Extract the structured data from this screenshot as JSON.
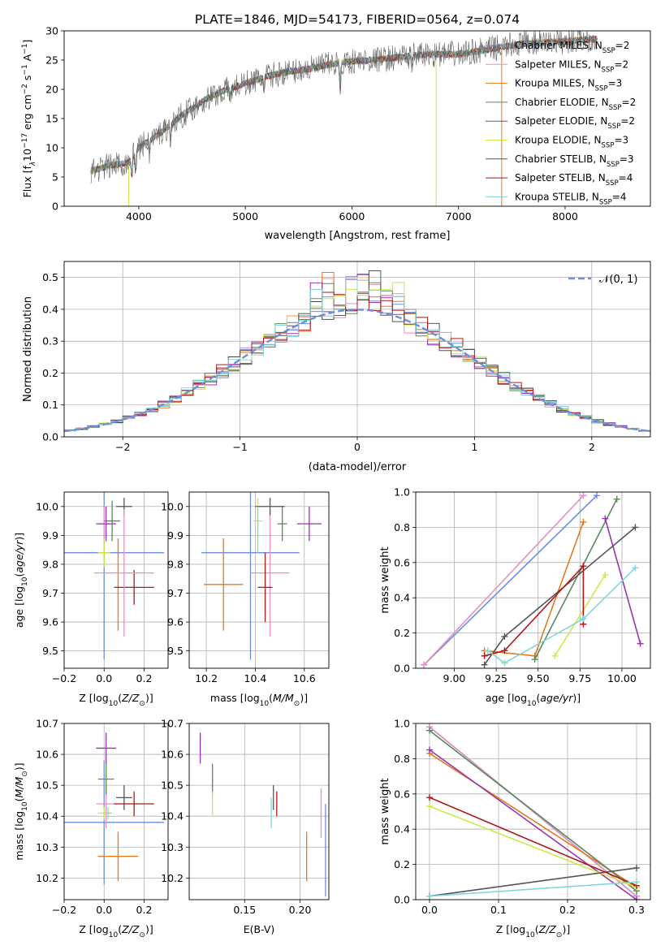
{
  "figure": {
    "title": "PLATE=1846, MJD=54173, FIBERID=0564, z=0.074"
  },
  "colors": {
    "Chabrier MILES": "#6a8fe0",
    "Salpeter MILES": "#e58fc4",
    "Kroupa MILES": "#e07b1f",
    "Chabrier ELODIE": "#5a8a5a",
    "Salpeter ELODIE": "#9b34b0",
    "Kroupa ELODIE": "#cfe84a",
    "Chabrier STELIB": "#555555",
    "Salpeter STELIB": "#b01818",
    "Kroupa STELIB": "#80d8d8",
    "normal": "#6a8fe0",
    "grid": "#b0b0b0"
  },
  "chart_data": [
    {
      "id": "spectrum",
      "type": "line",
      "title": "PLATE=1846, MJD=54173, FIBERID=0564, z=0.074",
      "xlabel": "wavelength [Angstrom, rest frame]",
      "ylabel_parts": [
        "Flux [f",
        "λ",
        "10",
        "−17",
        " erg cm",
        "−2",
        " s",
        "−1",
        " A",
        "−1",
        "]"
      ],
      "xlim": [
        3300,
        8800
      ],
      "ylim": [
        0,
        30
      ],
      "xticks": [
        4000,
        5000,
        6000,
        7000,
        8000
      ],
      "yticks": [
        0,
        5,
        10,
        15,
        20,
        25,
        30
      ],
      "grid": false,
      "legend_position": "right",
      "continuum": {
        "x": [
          3550,
          3700,
          3900,
          4000,
          4200,
          4400,
          4600,
          4800,
          5000,
          5200,
          5400,
          5600,
          5800,
          6000,
          6200,
          6400,
          6600,
          6800,
          7000,
          7200,
          7400,
          7600,
          7800,
          8000,
          8200,
          8300
        ],
        "y": [
          6.0,
          6.8,
          7.5,
          10.0,
          12.5,
          15.5,
          18.0,
          19.8,
          21.0,
          22.2,
          23.0,
          23.5,
          24.3,
          24.8,
          25.0,
          25.4,
          25.8,
          26.0,
          26.0,
          26.6,
          27.2,
          27.8,
          28.0,
          28.2,
          28.5,
          28.6
        ]
      },
      "series": [
        {
          "name": "Chabrier MILES",
          "label_main": "Chabrier MILES, N",
          "label_sub": "SSP",
          "label_tail": "=2"
        },
        {
          "name": "Salpeter MILES",
          "label_main": "Salpeter MILES, N",
          "label_sub": "SSP",
          "label_tail": "=2"
        },
        {
          "name": "Kroupa MILES",
          "label_main": "Kroupa MILES, N",
          "label_sub": "SSP",
          "label_tail": "=3"
        },
        {
          "name": "Chabrier ELODIE",
          "label_main": "Chabrier ELODIE, N",
          "label_sub": "SSP",
          "label_tail": "=2"
        },
        {
          "name": "Salpeter ELODIE",
          "label_main": "Salpeter ELODIE, N",
          "label_sub": "SSP",
          "label_tail": "=2"
        },
        {
          "name": "Kroupa ELODIE",
          "label_main": "Kroupa ELODIE, N",
          "label_sub": "SSP",
          "label_tail": "=3"
        },
        {
          "name": "Chabrier STELIB",
          "label_main": "Chabrier STELIB, N",
          "label_sub": "SSP",
          "label_tail": "=3"
        },
        {
          "name": "Salpeter STELIB",
          "label_main": "Salpeter STELIB, N",
          "label_sub": "SSP",
          "label_tail": "=4"
        },
        {
          "name": "Kroupa STELIB",
          "label_main": "Kroupa STELIB, N",
          "label_sub": "SSP",
          "label_tail": "=4"
        }
      ]
    },
    {
      "id": "residuals",
      "type": "histogram",
      "xlabel": "(data-model)/error",
      "ylabel": "Normed distribution",
      "xlim": [
        -2.5,
        2.5
      ],
      "ylim": [
        0,
        0.55
      ],
      "xticks": [
        -2,
        -1,
        0,
        1,
        2
      ],
      "yticks": [
        0.0,
        0.1,
        0.2,
        0.3,
        0.4,
        0.5
      ],
      "grid": true,
      "legend_position": "top-right",
      "normal_label": "𝒩(0, 1)",
      "bin_width": 0.1,
      "bins_start": -2.5
    },
    {
      "id": "age-vs-Z",
      "type": "errorbar",
      "xlabel": "Z [log10(Z/Z⊙)]",
      "ylabel": "age [log10(age/yr)]",
      "xlim": [
        -0.2,
        0.32
      ],
      "ylim": [
        9.44,
        10.05
      ],
      "xticks": [
        -0.2,
        0.0,
        0.2
      ],
      "yticks": [
        9.5,
        9.6,
        9.7,
        9.8,
        9.9,
        10.0
      ],
      "grid": true,
      "points": [
        {
          "series": "Chabrier MILES",
          "x": 0.0,
          "xerr": 0.3,
          "y": 9.84,
          "yerr": 0.37
        },
        {
          "series": "Salpeter MILES",
          "x": 0.0,
          "xerr": 0.03,
          "y": 9.94,
          "yerr": 0.06
        },
        {
          "series": "Kroupa MILES",
          "x": 0.07,
          "xerr": 0.0,
          "y": 9.73,
          "yerr": 0.16
        },
        {
          "series": "Chabrier ELODIE",
          "x": 0.04,
          "xerr": 0.04,
          "y": 9.95,
          "yerr": 0.07
        },
        {
          "series": "Salpeter ELODIE",
          "x": 0.01,
          "xerr": 0.05,
          "y": 9.94,
          "yerr": 0.06
        },
        {
          "series": "Kroupa ELODIE",
          "x": 0.0,
          "xerr": 0.03,
          "y": 9.84,
          "yerr": 0.05
        },
        {
          "series": "Chabrier STELIB",
          "x": 0.1,
          "xerr": 0.04,
          "y": 10.0,
          "yerr": 0.03
        },
        {
          "series": "Salpeter STELIB",
          "x": 0.15,
          "xerr": 0.1,
          "y": 9.72,
          "yerr": 0.06
        },
        {
          "series": "Salpeter MILES",
          "x": 0.1,
          "xerr": 0.15,
          "y": 9.77,
          "yerr": 0.22
        }
      ]
    },
    {
      "id": "age-vs-mass",
      "type": "errorbar",
      "xlabel": "mass [log10(M/M⊙)]",
      "ylabel": "",
      "xlim": [
        10.13,
        10.7
      ],
      "ylim": [
        9.44,
        10.05
      ],
      "xticks": [
        10.2,
        10.4,
        10.6
      ],
      "yticks": [
        9.5,
        9.6,
        9.7,
        9.8,
        9.9,
        10.0
      ],
      "grid": true,
      "points": [
        {
          "series": "Chabrier MILES",
          "x": 10.38,
          "xerr": 0.2,
          "y": 9.84,
          "yerr": 0.37
        },
        {
          "series": "Kroupa MILES",
          "x": 10.27,
          "xerr": 0.08,
          "y": 9.73,
          "yerr": 0.16
        },
        {
          "series": "Salpeter MILES",
          "x": 10.46,
          "xerr": 0.08,
          "y": 9.77,
          "yerr": 0.22
        },
        {
          "series": "Chabrier ELODIE",
          "x": 10.51,
          "xerr": 0.02,
          "y": 9.94,
          "yerr": 0.06
        },
        {
          "series": "Salpeter ELODIE",
          "x": 10.62,
          "xerr": 0.05,
          "y": 9.94,
          "yerr": 0.06
        },
        {
          "series": "Kroupa ELODIE",
          "x": 10.41,
          "xerr": 0.02,
          "y": 9.95,
          "yerr": 0.08
        },
        {
          "series": "Chabrier STELIB",
          "x": 10.46,
          "xerr": 0.06,
          "y": 10.0,
          "yerr": 0.03
        },
        {
          "series": "Salpeter STELIB",
          "x": 10.44,
          "xerr": 0.03,
          "y": 9.72,
          "yerr": 0.12
        },
        {
          "series": "Kroupa STELIB",
          "x": 10.41,
          "xerr": 0.0,
          "y": 9.92,
          "yerr": 0.08
        }
      ]
    },
    {
      "id": "weight-vs-age",
      "type": "line",
      "xlabel": "age [log10(age/yr)]",
      "ylabel": "mass weight",
      "xlim": [
        8.77,
        10.17
      ],
      "ylim": [
        0,
        1
      ],
      "xticks": [
        9.0,
        9.25,
        9.5,
        9.75,
        10.0
      ],
      "yticks": [
        0.0,
        0.2,
        0.4,
        0.6,
        0.8,
        1.0
      ],
      "grid": true,
      "series": [
        {
          "name": "Chabrier MILES",
          "x": [
            8.82,
            9.85
          ],
          "y": [
            0.02,
            0.98
          ]
        },
        {
          "name": "Salpeter MILES",
          "x": [
            8.82,
            9.77
          ],
          "y": [
            0.02,
            0.98
          ]
        },
        {
          "name": "Kroupa MILES",
          "x": [
            9.18,
            9.48,
            9.77
          ],
          "y": [
            0.1,
            0.07,
            0.83
          ]
        },
        {
          "name": "Chabrier ELODIE",
          "x": [
            9.48,
            9.97
          ],
          "y": [
            0.05,
            0.96
          ]
        },
        {
          "name": "Salpeter ELODIE",
          "x": [
            9.9,
            10.11
          ],
          "y": [
            0.85,
            0.14
          ]
        },
        {
          "name": "Kroupa ELODIE",
          "x": [
            9.6,
            9.9
          ],
          "y": [
            0.07,
            0.53
          ]
        },
        {
          "name": "Chabrier STELIB",
          "x": [
            9.18,
            9.3,
            10.08
          ],
          "y": [
            0.02,
            0.18,
            0.8
          ]
        },
        {
          "name": "Salpeter STELIB",
          "x": [
            9.18,
            9.3,
            9.77,
            9.77
          ],
          "y": [
            0.07,
            0.1,
            0.58,
            0.25
          ]
        },
        {
          "name": "Kroupa STELIB",
          "x": [
            9.2,
            9.3,
            9.77,
            10.08
          ],
          "y": [
            0.1,
            0.03,
            0.28,
            0.57
          ]
        }
      ]
    },
    {
      "id": "mass-vs-Z",
      "type": "errorbar",
      "xlabel": "Z [log10(Z/Z⊙)]",
      "ylabel": "mass [log10(M/M⊙)]",
      "xlim": [
        -0.2,
        0.32
      ],
      "ylim": [
        10.13,
        10.7
      ],
      "xticks": [
        -0.2,
        0.0,
        0.2
      ],
      "yticks": [
        10.2,
        10.3,
        10.4,
        10.5,
        10.6,
        10.7
      ],
      "grid": true,
      "points": [
        {
          "series": "Chabrier MILES",
          "x": 0.0,
          "xerr": 0.3,
          "y": 10.38,
          "yerr": 0.2
        },
        {
          "series": "Kroupa MILES",
          "x": 0.07,
          "xerr": 0.1,
          "y": 10.27,
          "yerr": 0.08
        },
        {
          "series": "Salpeter MILES",
          "x": 0.01,
          "xerr": 0.05,
          "y": 10.44,
          "yerr": 0.08
        },
        {
          "series": "Chabrier ELODIE",
          "x": 0.01,
          "xerr": 0.04,
          "y": 10.52,
          "yerr": 0.05
        },
        {
          "series": "Salpeter ELODIE",
          "x": 0.01,
          "xerr": 0.05,
          "y": 10.62,
          "yerr": 0.05
        },
        {
          "series": "Kroupa ELODIE",
          "x": 0.0,
          "xerr": 0.03,
          "y": 10.41,
          "yerr": 0.02
        },
        {
          "series": "Chabrier STELIB",
          "x": 0.1,
          "xerr": 0.04,
          "y": 10.46,
          "yerr": 0.04
        },
        {
          "series": "Salpeter STELIB",
          "x": 0.15,
          "xerr": 0.1,
          "y": 10.44,
          "yerr": 0.04
        },
        {
          "series": "Kroupa STELIB",
          "x": 0.02,
          "xerr": 0.02,
          "y": 10.41,
          "yerr": 0.02
        }
      ]
    },
    {
      "id": "mass-vs-ebv",
      "type": "errorbar",
      "xlabel": "E(B-V)",
      "ylabel": "",
      "xlim": [
        0.1,
        0.226
      ],
      "ylim": [
        10.13,
        10.7
      ],
      "xticks": [
        0.15,
        0.2
      ],
      "yticks": [
        10.2,
        10.3,
        10.4,
        10.5,
        10.6,
        10.7
      ],
      "grid": true,
      "points": [
        {
          "series": "Salpeter ELODIE",
          "x": 0.11,
          "y": 10.62,
          "yerr": 0.05
        },
        {
          "series": "Chabrier ELODIE",
          "x": 0.121,
          "y": 10.52,
          "yerr": 0.05
        },
        {
          "series": "Kroupa ELODIE",
          "x": 0.121,
          "y": 10.44,
          "yerr": 0.04
        },
        {
          "series": "Kroupa STELIB",
          "x": 0.174,
          "y": 10.41,
          "yerr": 0.05
        },
        {
          "series": "Chabrier STELIB",
          "x": 0.176,
          "y": 10.46,
          "yerr": 0.04
        },
        {
          "series": "Salpeter STELIB",
          "x": 0.179,
          "y": 10.44,
          "yerr": 0.04
        },
        {
          "series": "Kroupa MILES",
          "x": 0.206,
          "y": 10.27,
          "yerr": 0.08
        },
        {
          "series": "Salpeter MILES",
          "x": 0.219,
          "y": 10.41,
          "yerr": 0.08
        },
        {
          "series": "Chabrier MILES",
          "x": 0.223,
          "y": 10.29,
          "yerr": 0.15
        }
      ]
    },
    {
      "id": "weight-vs-Z",
      "type": "line",
      "xlabel": "Z [log10(Z/Z⊙)]",
      "ylabel": "mass weight",
      "xlim": [
        -0.02,
        0.32
      ],
      "ylim": [
        0,
        1
      ],
      "xticks": [
        0.0,
        0.1,
        0.2,
        0.3
      ],
      "yticks": [
        0.0,
        0.2,
        0.4,
        0.6,
        0.8,
        1.0
      ],
      "grid": true,
      "series": [
        {
          "name": "Chabrier MILES",
          "x": [
            0.0,
            0.3
          ],
          "y": [
            0.98,
            0.02
          ]
        },
        {
          "name": "Salpeter MILES",
          "x": [
            0.0,
            0.3
          ],
          "y": [
            0.98,
            0.02
          ]
        },
        {
          "name": "Kroupa MILES",
          "x": [
            0.0,
            0.3
          ],
          "y": [
            0.83,
            0.07
          ]
        },
        {
          "name": "Chabrier ELODIE",
          "x": [
            0.0,
            0.3
          ],
          "y": [
            0.96,
            0.05
          ]
        },
        {
          "name": "Salpeter ELODIE",
          "x": [
            0.0,
            0.3
          ],
          "y": [
            0.85,
            0.0
          ]
        },
        {
          "name": "Kroupa ELODIE",
          "x": [
            0.0,
            0.3
          ],
          "y": [
            0.53,
            0.07
          ]
        },
        {
          "name": "Chabrier STELIB",
          "x": [
            0.0,
            0.3
          ],
          "y": [
            0.02,
            0.18
          ]
        },
        {
          "name": "Salpeter STELIB",
          "x": [
            0.0,
            0.3
          ],
          "y": [
            0.58,
            0.08
          ]
        },
        {
          "name": "Kroupa STELIB",
          "x": [
            0.0,
            0.3
          ],
          "y": [
            0.02,
            0.1
          ]
        }
      ]
    }
  ]
}
